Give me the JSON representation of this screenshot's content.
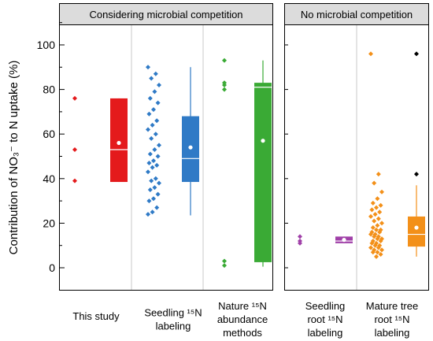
{
  "chart_data": {
    "type": "box",
    "ylabel": "Contribution of NO₃⁻ to N uptake (%)",
    "ylim": [
      -5,
      110
    ],
    "yticks": [
      0,
      20,
      40,
      60,
      80,
      100
    ],
    "grid": false,
    "panels": [
      {
        "title": "Considering microbial competition",
        "groups": [
          {
            "label_lines": [
              "This study"
            ],
            "color": "#e41a1c",
            "points": [
              76,
              53,
              39
            ],
            "box": {
              "q1": 38.5,
              "median": 53,
              "q3": 76,
              "whisker_low": 38.5,
              "whisker_high": 76,
              "mean": 56
            }
          },
          {
            "label_lines": [
              "Seedling ¹⁵N",
              "labeling"
            ],
            "color": "#2f7ac6",
            "points": [
              90,
              87,
              85,
              82,
              79,
              76,
              74,
              71,
              69,
              66,
              64,
              62,
              60,
              58,
              55,
              53,
              51,
              50,
              48,
              47,
              46,
              45,
              43,
              40,
              39,
              38,
              36,
              35,
              33,
              31,
              30,
              27,
              25,
              24
            ],
            "box": {
              "q1": 38.5,
              "median": 49,
              "q3": 68,
              "whisker_low": 23.5,
              "whisker_high": 90,
              "mean": 54
            }
          },
          {
            "label_lines": [
              "Nature ¹⁵N",
              "abundance",
              "methods"
            ],
            "color": "#3aaa35",
            "points": [
              93,
              83,
              82,
              80,
              3,
              1
            ],
            "box": {
              "q1": 2.5,
              "median": 81,
              "q3": 83,
              "whisker_low": 0.5,
              "whisker_high": 93,
              "mean": 57
            }
          }
        ]
      },
      {
        "title": "No microbial competition",
        "groups": [
          {
            "label_lines": [
              "Seedling",
              "root ¹⁵N",
              "labeling"
            ],
            "color": "#a040a8",
            "points": [
              14,
              12,
              11
            ],
            "box": {
              "q1": 11,
              "median": 12,
              "q3": 14,
              "whisker_low": 11,
              "whisker_high": 14,
              "mean": 12.5
            }
          },
          {
            "label_lines": [
              "Mature tree",
              "root ¹⁵N",
              "labeling"
            ],
            "color": "#f39019",
            "points": [
              96,
              42,
              38,
              34,
              31,
              29,
              28,
              27,
              26,
              25,
              24,
              23,
              22,
              21,
              20,
              19,
              18,
              17,
              17,
              16,
              16,
              15,
              15,
              14,
              14,
              13,
              13,
              12,
              12,
              11,
              11,
              10,
              10,
              9,
              9,
              8,
              8,
              7,
              7,
              6,
              5
            ],
            "box": {
              "q1": 9.5,
              "median": 15,
              "q3": 23,
              "whisker_low": 5,
              "whisker_high": 37,
              "mean": 18
            },
            "outliers": [
              96,
              42
            ],
            "outlier_color": "#000000"
          }
        ]
      }
    ]
  }
}
